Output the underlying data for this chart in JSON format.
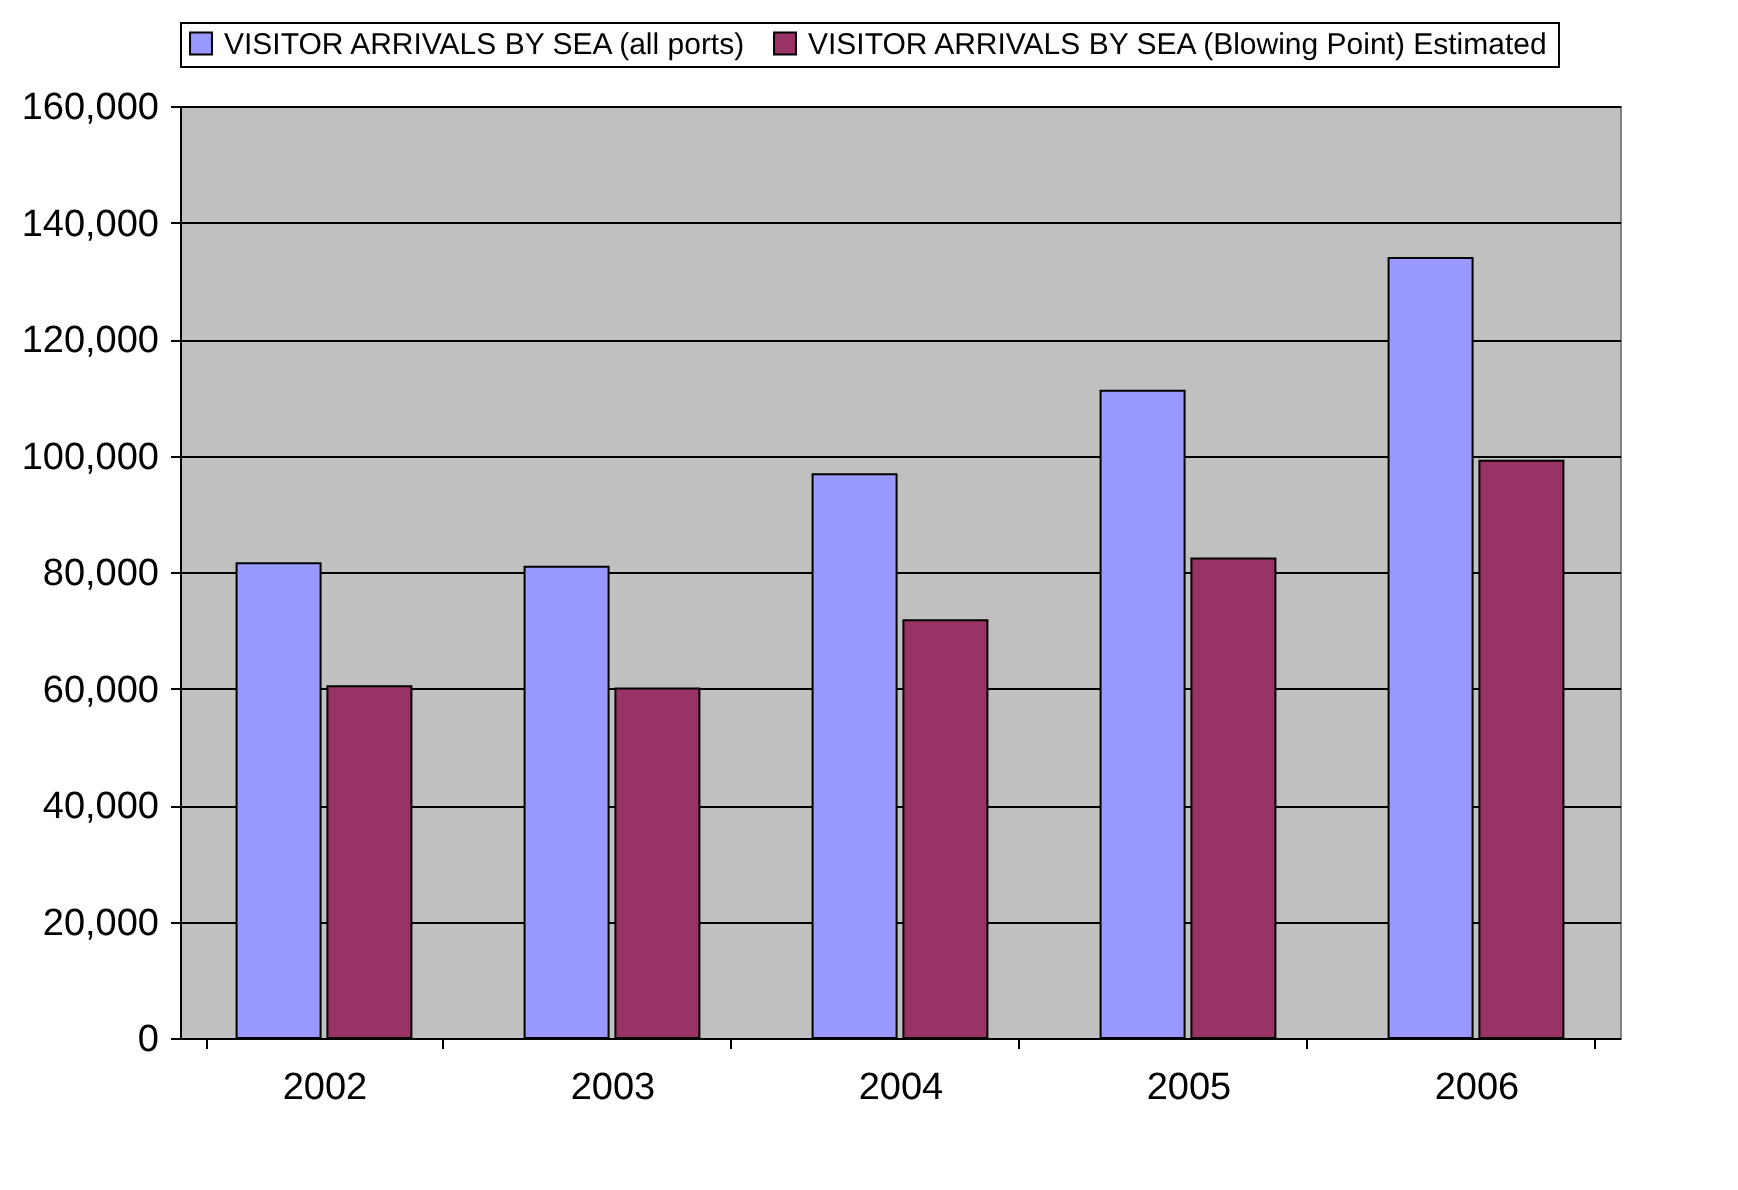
{
  "chart_data": {
    "type": "bar",
    "categories": [
      "2002",
      "2003",
      "2004",
      "2005",
      "2006"
    ],
    "series": [
      {
        "name": "VISITOR ARRIVALS BY SEA (all ports)",
        "color": "#9999ff",
        "values": [
          81500,
          80900,
          96800,
          111100,
          133900
        ]
      },
      {
        "name": "VISITOR ARRIVALS BY SEA (Blowing Point) Estimated",
        "color": "#993366",
        "values": [
          60400,
          60000,
          71700,
          82300,
          99100
        ]
      }
    ],
    "ylim": [
      0,
      160000
    ],
    "yticks": [
      0,
      {
        "value": 20000,
        "label": "20,000"
      },
      {
        "value": 40000,
        "label": "40,000"
      },
      {
        "value": 60000,
        "label": "60,000"
      },
      {
        "value": 80000,
        "label": "80,000"
      },
      {
        "value": 100000,
        "label": "100,000"
      },
      {
        "value": 120000,
        "label": "120,000"
      },
      {
        "value": 140000,
        "label": "140,000"
      },
      {
        "value": 160000,
        "label": "160,000"
      }
    ],
    "grid": "y",
    "legend": "top"
  }
}
